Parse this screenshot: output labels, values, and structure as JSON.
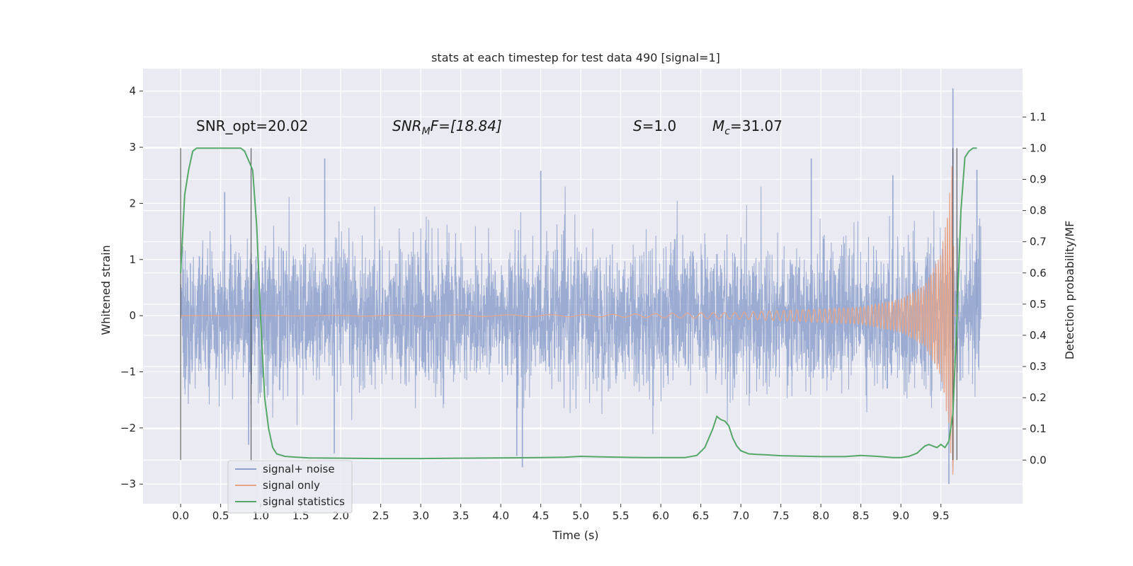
{
  "chart_data": {
    "type": "line",
    "title": "stats at each timestep for test data 490 [signal=1]",
    "xlabel": "Time (s)",
    "ylabel": "Whitened strain",
    "y2label": "Detection probability/MF",
    "xlim": [
      -0.47,
      10.52
    ],
    "ylim": [
      -3.35,
      4.4
    ],
    "y2lim": [
      -0.14,
      1.255
    ],
    "x_ticks": [
      "0.0",
      "0.5",
      "1.0",
      "1.5",
      "2.0",
      "2.5",
      "3.0",
      "3.5",
      "4.0",
      "4.5",
      "5.0",
      "5.5",
      "6.0",
      "6.5",
      "7.0",
      "7.5",
      "8.0",
      "8.5",
      "9.0",
      "9.5"
    ],
    "y_ticks": [
      "4",
      "3",
      "2",
      "1",
      "0",
      "−1",
      "−2",
      "−3"
    ],
    "y2_ticks": [
      "1.1",
      "1.0",
      "0.9",
      "0.8",
      "0.7",
      "0.6",
      "0.5",
      "0.4",
      "0.3",
      "0.2",
      "0.1",
      "0.0"
    ],
    "grid": true,
    "legend_position": "lower-left",
    "annotations": {
      "snr_opt": "SNR_opt=20.02",
      "snr_mf_base": "SNR",
      "snr_mf_sub": "M",
      "snr_mf_rest": "F=[18.84]",
      "s_label": "S",
      "s_value": "=1.0",
      "mc_base": "M",
      "mc_sub": "c",
      "mc_value": "=31.07"
    },
    "vertical_lines_x": [
      0.0,
      0.88,
      9.65,
      9.7
    ],
    "series": [
      {
        "name": "signal+ noise",
        "color": "#8da0cb",
        "description_of_values": "white noise, amplitude mostly within ±1.5, extremes from about -3.0 to 4.05",
        "peaks": [
          {
            "x": 1.8,
            "y": 2.8
          },
          {
            "x": 4.5,
            "y": 2.58
          },
          {
            "x": 7.88,
            "y": 2.8
          },
          {
            "x": 9.65,
            "y": 4.05
          },
          {
            "x": 9.95,
            "y": 2.6
          },
          {
            "x": 0.55,
            "y": 2.2
          },
          {
            "x": 8.9,
            "y": 2.5
          }
        ],
        "troughs": [
          {
            "x": 4.2,
            "y": -2.5
          },
          {
            "x": 4.27,
            "y": -2.7
          },
          {
            "x": 9.6,
            "y": -3.0
          },
          {
            "x": 0.85,
            "y": -2.3
          },
          {
            "x": 1.92,
            "y": -2.45
          },
          {
            "x": 9.65,
            "y": -2.7
          }
        ]
      },
      {
        "name": "signal only",
        "color": "#e5a58a",
        "description_of_values": "chirp: near zero until ~5.2 s, growing oscillation, peaks near 9.66 s",
        "envelope": [
          {
            "x": 0.0,
            "a": 0.0
          },
          {
            "x": 5.2,
            "a": 0.02
          },
          {
            "x": 7.0,
            "a": 0.06
          },
          {
            "x": 8.5,
            "a": 0.15
          },
          {
            "x": 9.0,
            "a": 0.3
          },
          {
            "x": 9.3,
            "a": 0.55
          },
          {
            "x": 9.5,
            "a": 1.1
          },
          {
            "x": 9.6,
            "a": 2.0
          },
          {
            "x": 9.66,
            "a": 3.2
          }
        ]
      },
      {
        "name": "signal statistics",
        "color": "#55a868",
        "axis": "right",
        "x": [
          0.0,
          0.05,
          0.1,
          0.15,
          0.2,
          0.3,
          0.4,
          0.5,
          0.6,
          0.7,
          0.75,
          0.8,
          0.85,
          0.9,
          0.95,
          1.0,
          1.05,
          1.1,
          1.15,
          1.2,
          1.3,
          1.4,
          1.6,
          2.0,
          2.5,
          3.0,
          3.5,
          4.0,
          4.5,
          4.8,
          5.0,
          5.3,
          5.8,
          6.3,
          6.45,
          6.55,
          6.65,
          6.7,
          6.75,
          6.8,
          6.85,
          6.9,
          6.95,
          7.0,
          7.1,
          7.2,
          7.3,
          7.5,
          8.0,
          8.3,
          8.5,
          8.7,
          8.9,
          9.0,
          9.1,
          9.2,
          9.3,
          9.35,
          9.4,
          9.45,
          9.5,
          9.55,
          9.6,
          9.65,
          9.7,
          9.75,
          9.8,
          9.85,
          9.9,
          9.95
        ],
        "values": [
          0.6,
          0.85,
          0.93,
          0.99,
          1.0,
          1.0,
          1.0,
          1.0,
          1.0,
          1.0,
          1.0,
          0.99,
          0.96,
          0.93,
          0.75,
          0.45,
          0.2,
          0.1,
          0.04,
          0.02,
          0.012,
          0.01,
          0.007,
          0.006,
          0.005,
          0.005,
          0.006,
          0.007,
          0.008,
          0.009,
          0.012,
          0.01,
          0.008,
          0.008,
          0.015,
          0.04,
          0.1,
          0.14,
          0.13,
          0.125,
          0.11,
          0.07,
          0.045,
          0.03,
          0.02,
          0.018,
          0.017,
          0.014,
          0.011,
          0.011,
          0.015,
          0.012,
          0.008,
          0.008,
          0.012,
          0.022,
          0.045,
          0.05,
          0.045,
          0.04,
          0.05,
          0.04,
          0.06,
          0.15,
          0.45,
          0.8,
          0.97,
          0.99,
          1.0,
          1.0
        ]
      }
    ]
  },
  "legend": {
    "items": [
      {
        "label": "signal+ noise",
        "color": "#8da0cb"
      },
      {
        "label": "signal only",
        "color": "#e5a58a"
      },
      {
        "label": "signal statistics",
        "color": "#55a868"
      }
    ]
  },
  "style": {
    "plot_background": "#eaeaf2",
    "grid_color": "#ffffff",
    "vline_color": "#333333"
  }
}
